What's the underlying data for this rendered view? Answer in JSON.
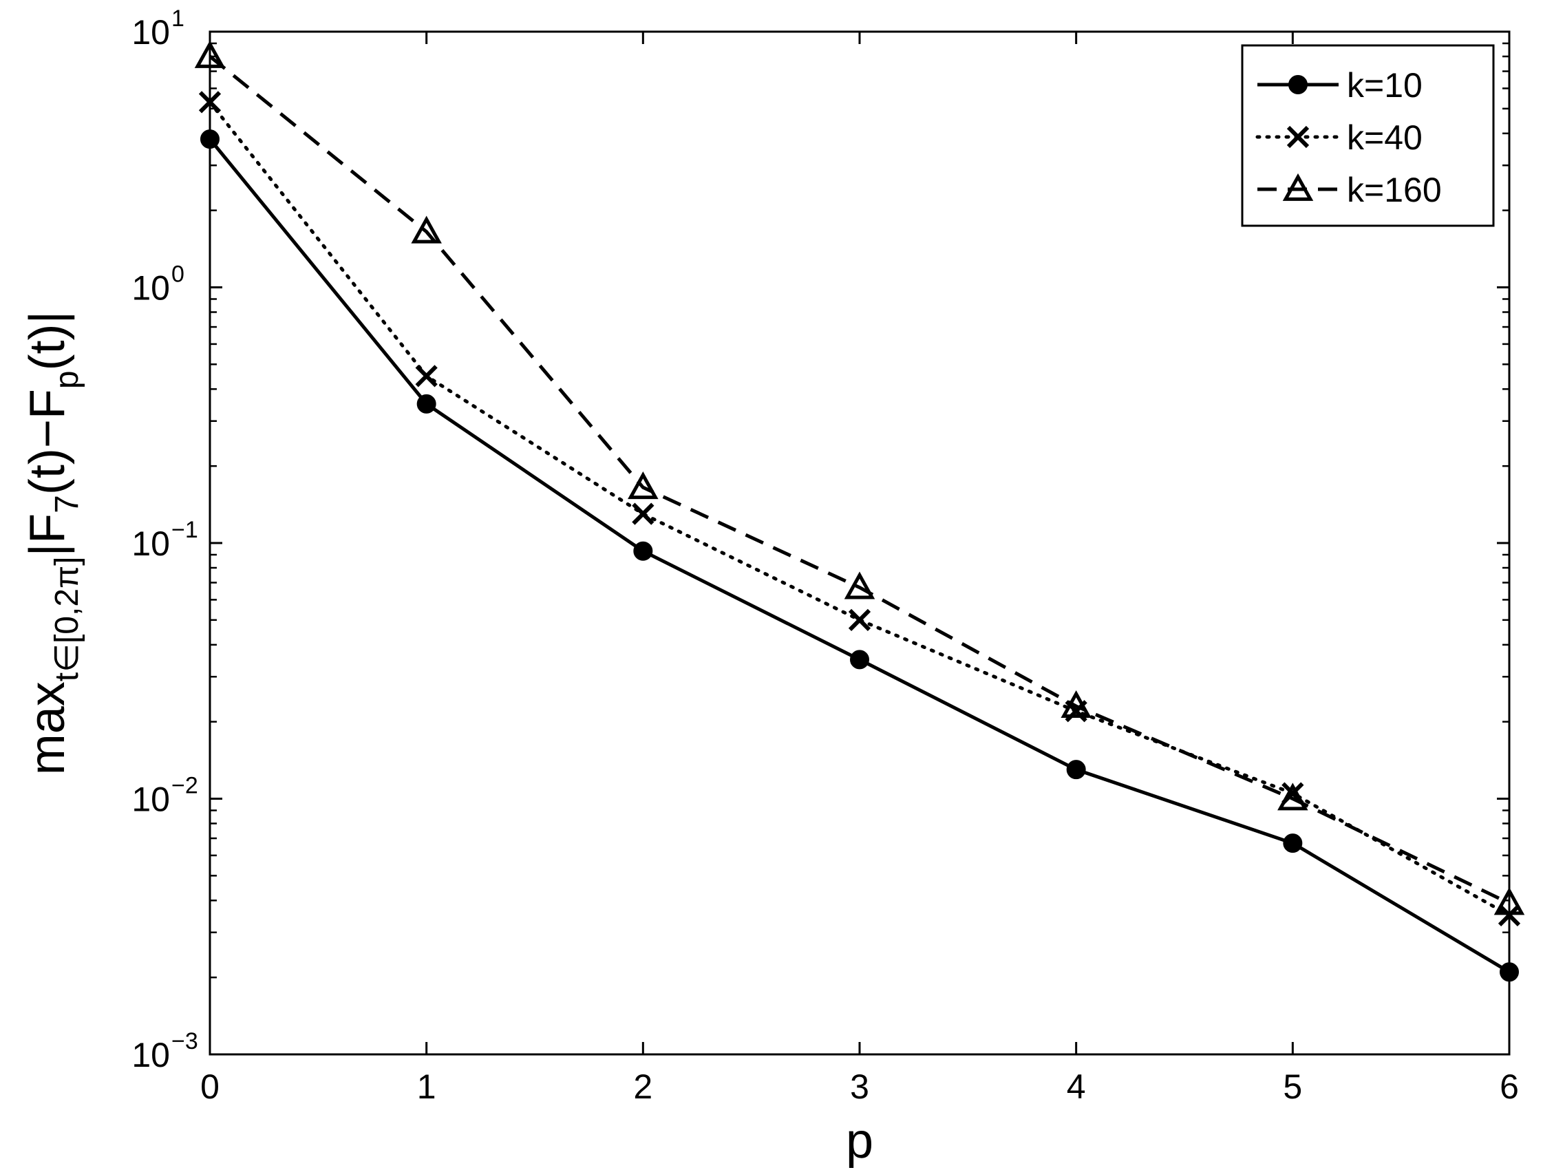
{
  "chart_data": {
    "type": "line",
    "x_scale": "linear",
    "y_scale": "log",
    "xlim": [
      0,
      6
    ],
    "ylim": [
      0.001,
      10
    ],
    "xlabel": "p",
    "ylabel": {
      "prefix": "max",
      "subscript": "t∈[0,2π]",
      "body_1": "|F",
      "sub_1": "7",
      "body_2": "(t)−F",
      "sub_2": "p",
      "body_3": "(t)|"
    },
    "x_ticks": [
      "0",
      "1",
      "2",
      "3",
      "4",
      "5",
      "6"
    ],
    "y_ticks": [
      {
        "base": "10",
        "exp": "-3"
      },
      {
        "base": "10",
        "exp": "-2"
      },
      {
        "base": "10",
        "exp": "-1"
      },
      {
        "base": "10",
        "exp": "0"
      },
      {
        "base": "10",
        "exp": "1"
      }
    ],
    "grid": false,
    "legend_position": "top-right",
    "x": [
      0,
      1,
      2,
      3,
      4,
      5,
      6
    ],
    "series": [
      {
        "name": "k=10",
        "line": "solid",
        "marker": "dot",
        "values": [
          3.8,
          0.35,
          0.093,
          0.035,
          0.013,
          0.0067,
          0.0021
        ]
      },
      {
        "name": "k=40",
        "line": "dotted",
        "marker": "x",
        "values": [
          5.3,
          0.45,
          0.13,
          0.05,
          0.022,
          0.0105,
          0.0035
        ]
      },
      {
        "name": "k=160",
        "line": "dashed",
        "marker": "triangle",
        "values": [
          8.0,
          1.65,
          0.165,
          0.067,
          0.023,
          0.01,
          0.0039
        ]
      }
    ]
  }
}
